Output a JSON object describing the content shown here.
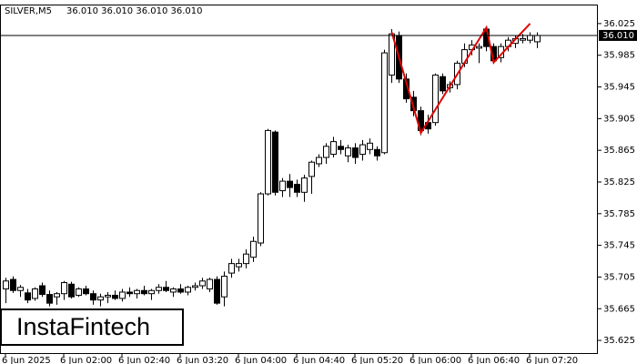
{
  "chart_data": {
    "type": "candlestick",
    "title": "SILVER,M5",
    "info": "36.010 36.010 36.010 36.010",
    "categories": [
      "6 Jun 2025",
      null,
      null,
      null,
      null,
      null,
      null,
      null,
      "6 Jun 02:00",
      null,
      null,
      null,
      null,
      null,
      null,
      null,
      "6 Jun 02:40",
      null,
      null,
      null,
      null,
      null,
      null,
      null,
      "6 Jun 03:20",
      null,
      null,
      null,
      null,
      null,
      null,
      null,
      "6 Jun 04:00",
      null,
      null,
      null,
      null,
      null,
      null,
      null,
      "6 Jun 04:40",
      null,
      null,
      null,
      null,
      null,
      null,
      null,
      "6 Jun 05:20",
      null,
      null,
      null,
      null,
      null,
      null,
      null,
      "6 Jun 06:00",
      null,
      null,
      null,
      null,
      null,
      null,
      null,
      "6 Jun 06:40",
      null,
      null,
      null,
      null,
      null,
      null,
      null,
      "6 Jun 07:20",
      null
    ],
    "open": [
      35.69,
      35.702,
      35.688,
      35.685,
      35.678,
      35.694,
      35.683,
      35.68,
      35.684,
      35.696,
      35.682,
      35.69,
      35.684,
      35.676,
      35.68,
      35.682,
      35.678,
      35.686,
      35.684,
      35.688,
      35.684,
      35.688,
      35.692,
      35.686,
      35.69,
      35.686,
      35.692,
      35.694,
      35.69,
      35.702,
      35.68,
      35.71,
      35.718,
      35.722,
      35.73,
      35.748,
      35.81,
      35.888,
      35.814,
      35.826,
      35.822,
      35.812,
      35.832,
      35.848,
      35.856,
      35.86,
      35.87,
      35.858,
      35.868,
      35.86,
      35.866,
      35.866,
      35.862,
      35.96,
      36.01,
      35.955,
      35.932,
      35.915,
      35.9,
      35.9,
      35.958,
      35.944,
      35.948,
      35.975,
      35.992,
      35.994,
      36.018,
      35.996,
      35.982,
      35.996,
      36.0,
      36.004,
      36.004,
      36.002
    ],
    "high": [
      35.704,
      35.706,
      35.695,
      35.69,
      35.692,
      35.698,
      35.688,
      35.686,
      35.7,
      35.699,
      35.692,
      35.694,
      35.688,
      35.684,
      35.686,
      35.688,
      35.69,
      35.692,
      35.69,
      35.694,
      35.69,
      35.696,
      35.7,
      35.692,
      35.696,
      35.694,
      35.698,
      35.704,
      35.704,
      35.706,
      35.712,
      35.728,
      35.728,
      35.74,
      35.756,
      35.812,
      35.892,
      35.89,
      35.83,
      35.835,
      35.828,
      35.834,
      35.852,
      35.86,
      35.874,
      35.882,
      35.878,
      35.872,
      35.874,
      35.878,
      35.88,
      35.87,
      35.992,
      36.018,
      36.015,
      35.962,
      35.94,
      35.92,
      35.91,
      35.962,
      35.962,
      35.952,
      35.978,
      36.0,
      36.004,
      36.0,
      36.02,
      36.0,
      36.0,
      36.008,
      36.01,
      36.012,
      36.014,
      36.014
    ],
    "low": [
      35.672,
      35.685,
      35.68,
      35.672,
      35.675,
      35.68,
      35.668,
      35.67,
      35.676,
      35.678,
      35.68,
      35.682,
      35.67,
      35.668,
      35.672,
      35.676,
      35.674,
      35.68,
      35.678,
      35.682,
      35.676,
      35.684,
      35.686,
      35.68,
      35.684,
      35.682,
      35.688,
      35.69,
      35.686,
      35.67,
      35.668,
      35.704,
      35.712,
      35.716,
      35.724,
      35.744,
      35.808,
      35.808,
      35.806,
      35.806,
      35.806,
      35.8,
      35.81,
      35.844,
      35.848,
      35.856,
      35.86,
      35.85,
      35.848,
      35.852,
      35.86,
      35.852,
      35.86,
      35.95,
      35.95,
      35.925,
      35.908,
      35.884,
      35.886,
      35.896,
      35.936,
      35.938,
      35.942,
      35.97,
      35.985,
      35.975,
      35.99,
      35.974,
      35.976,
      35.99,
      35.994,
      36.0,
      36.0,
      35.994
    ],
    "close": [
      35.7,
      35.688,
      35.692,
      35.676,
      35.69,
      35.683,
      35.672,
      35.684,
      35.698,
      35.68,
      35.69,
      35.684,
      35.676,
      35.68,
      35.682,
      35.678,
      35.686,
      35.684,
      35.688,
      35.684,
      35.688,
      35.692,
      35.688,
      35.69,
      35.686,
      35.692,
      35.694,
      35.7,
      35.702,
      35.672,
      35.706,
      35.722,
      35.722,
      35.734,
      35.75,
      35.81,
      35.89,
      35.812,
      35.826,
      35.818,
      35.812,
      35.83,
      35.85,
      35.856,
      35.87,
      35.876,
      35.866,
      35.868,
      35.856,
      35.872,
      35.874,
      35.858,
      35.988,
      36.012,
      35.955,
      35.93,
      35.915,
      35.89,
      35.892,
      35.96,
      35.94,
      35.948,
      35.975,
      35.992,
      35.998,
      35.996,
      35.996,
      35.978,
      35.996,
      36.004,
      36.006,
      36.006,
      36.01,
      36.01
    ],
    "pattern": {
      "color": "#e00000",
      "x": [
        53,
        57,
        66,
        67,
        72
      ],
      "values": [
        36.014,
        35.887,
        36.02,
        35.976,
        36.025
      ]
    },
    "current_price": {
      "value": 36.01,
      "label": "36.010"
    },
    "ylim": [
      35.609,
      36.049
    ],
    "yticks": [
      35.625,
      35.665,
      35.705,
      35.745,
      35.785,
      35.825,
      35.865,
      35.905,
      35.945,
      35.985,
      36.025
    ]
  },
  "logo": "InstaFintech"
}
